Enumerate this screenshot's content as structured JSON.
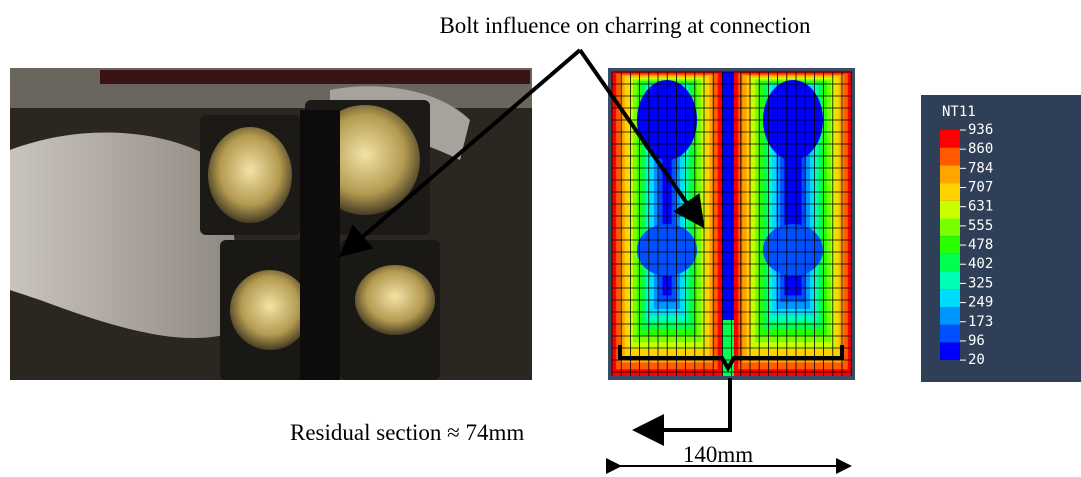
{
  "caption": "Bolt influence on charring at connection",
  "residual_label": "Residual section ≈ 74mm",
  "width_label": "140mm",
  "legend": {
    "title": "NT11",
    "labels": [
      "936",
      "860",
      "784",
      "707",
      "631",
      "555",
      "478",
      "402",
      "325",
      "249",
      "173",
      "96",
      "20"
    ],
    "band_colors": [
      "#ff0000",
      "#ff5a00",
      "#ffa500",
      "#ffd200",
      "#c8ff00",
      "#78ff00",
      "#28ff00",
      "#00ff50",
      "#00ffb4",
      "#00dcff",
      "#0096ff",
      "#0050ff",
      "#0000ff"
    ]
  }
}
